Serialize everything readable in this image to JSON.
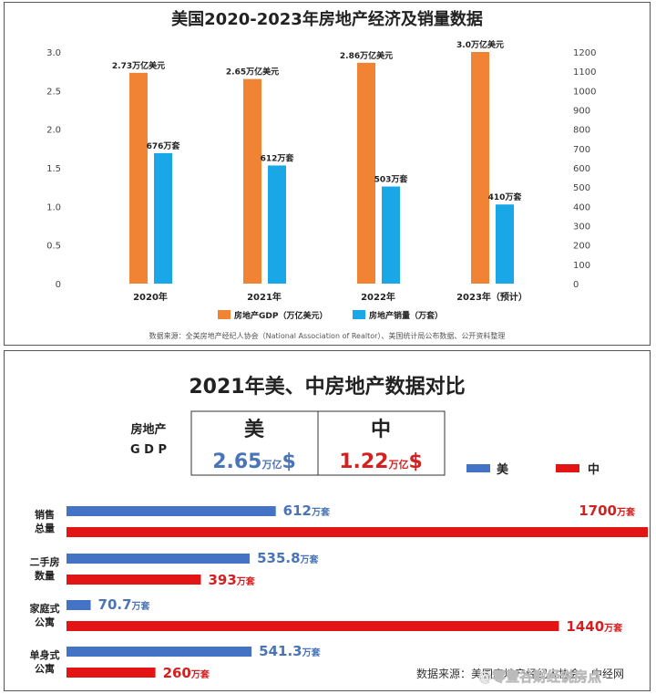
{
  "top": {
    "title": "美国2020-2023年房地产经济及销量数据",
    "source": "数据来源：全美房地产经纪人协会（National Association of Realtor）、美国统计局公布数据、公开资料整理"
  },
  "bottom": {
    "title": "2021年美、中房地产数据对比",
    "gdp_label_line1": "房地产",
    "gdp_label_line2": "G D P",
    "us_header": "美",
    "cn_header": "中",
    "us_gdp_value": "2.65",
    "cn_gdp_value": "1.22",
    "gdp_unit": "万亿",
    "gdp_currency": "$",
    "legend_us": "美",
    "legend_cn": "中",
    "source": "数据来源：美国房地产经纪人协会、中经网",
    "watermark": "@零壹谷财经说房点"
  },
  "chart_data": [
    {
      "type": "bar",
      "title": "美国2020-2023年房地产经济及销量数据",
      "categories": [
        "2020年",
        "2021年",
        "2022年",
        "2023年（预计）"
      ],
      "y_left": {
        "lim": [
          0,
          3.0
        ],
        "ticks": [
          "0",
          "0.5",
          "1.0",
          "1.5",
          "2.0",
          "2.5",
          "3.0"
        ]
      },
      "y_right": {
        "lim": [
          0,
          1200
        ],
        "ticks": [
          "0",
          "100",
          "200",
          "300",
          "400",
          "500",
          "600",
          "700",
          "800",
          "900",
          "1000",
          "1100",
          "1200"
        ]
      },
      "series": [
        {
          "name": "房地产GDP（万亿美元）",
          "axis": "left",
          "color": "#F08434",
          "values": [
            2.73,
            2.65,
            2.86,
            3.0
          ],
          "labels": [
            "2.73万亿美元",
            "2.65万亿美元",
            "2.86万亿美元",
            "3.0万亿美元"
          ]
        },
        {
          "name": "房地产销量（万套）",
          "axis": "right",
          "color": "#1AA7E8",
          "values": [
            676,
            612,
            503,
            410
          ],
          "labels": [
            "676万套",
            "612万套",
            "503万套",
            "410万套"
          ]
        }
      ],
      "legend": "bottom",
      "grid": false
    },
    {
      "type": "bar",
      "orientation": "horizontal",
      "title": "2021年美、中房地产数据对比",
      "categories": [
        {
          "line1": "销售",
          "line2": "总量"
        },
        {
          "line1": "二手房",
          "line2": "数量"
        },
        {
          "line1": "家庭式",
          "line2": "公寓"
        },
        {
          "line1": "单身式",
          "line2": "公寓"
        }
      ],
      "unit": "万套",
      "series": [
        {
          "name": "美",
          "color": "#4472C4",
          "value_color": "#4A74B8",
          "values": [
            612,
            535.8,
            70.7,
            541.3
          ],
          "labels": [
            "612",
            "535.8",
            "70.7",
            "541.3"
          ]
        },
        {
          "name": "中",
          "color": "#E31414",
          "value_color": "#D42020",
          "values": [
            1700,
            393,
            1440,
            260
          ],
          "labels": [
            "1700",
            "393",
            "1440",
            "260"
          ]
        }
      ],
      "legend": "top-right",
      "grid": false
    }
  ]
}
